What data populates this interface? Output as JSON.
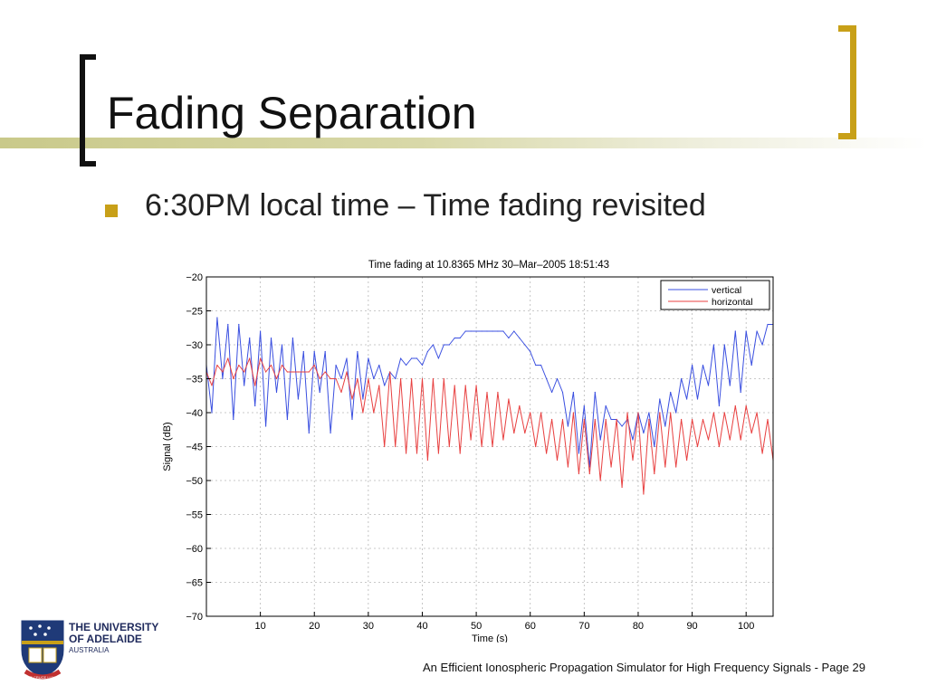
{
  "slide": {
    "title": "Fading Separation",
    "bullet": "6:30PM local time – Time fading revisited",
    "footer": "An Efficient Ionospheric Propagation Simulator for High Frequency Signals - Page 29",
    "logo": {
      "line1": "THE UNIVERSITY",
      "line2": "OF ADELAIDE",
      "line3": "AUSTRALIA",
      "motto": "SUB CRUCE LUMEN"
    }
  },
  "colors": {
    "accent_gold": "#c8a018",
    "accent_line": "#c9c98a",
    "vertical_series": "#3a4fe0",
    "horizontal_series": "#e84040"
  },
  "chart_data": {
    "type": "line",
    "title": "Time fading at 10.8365 MHz 30–Mar–2005 18:51:43",
    "xlabel": "Time (s)",
    "ylabel": "Signal (dB)",
    "xlim": [
      0,
      105
    ],
    "ylim": [
      -70,
      -20
    ],
    "xticks": [
      10,
      20,
      30,
      40,
      50,
      60,
      70,
      80,
      90,
      100
    ],
    "yticks": [
      -20,
      -25,
      -30,
      -35,
      -40,
      -45,
      -50,
      -55,
      -60,
      -65,
      -70
    ],
    "grid": true,
    "legend_position": "top-right",
    "series": [
      {
        "name": "vertical",
        "color": "#3a4fe0",
        "x": [
          0,
          1,
          2,
          3,
          4,
          5,
          6,
          7,
          8,
          9,
          10,
          11,
          12,
          13,
          14,
          15,
          16,
          17,
          18,
          19,
          20,
          21,
          22,
          23,
          24,
          25,
          26,
          27,
          28,
          29,
          30,
          31,
          32,
          33,
          34,
          35,
          36,
          37,
          38,
          39,
          40,
          41,
          42,
          43,
          44,
          45,
          46,
          47,
          48,
          49,
          50,
          51,
          52,
          53,
          54,
          55,
          56,
          57,
          58,
          59,
          60,
          61,
          62,
          63,
          64,
          65,
          66,
          67,
          68,
          69,
          70,
          71,
          72,
          73,
          74,
          75,
          76,
          77,
          78,
          79,
          80,
          81,
          82,
          83,
          84,
          85,
          86,
          87,
          88,
          89,
          90,
          91,
          92,
          93,
          94,
          95,
          96,
          97,
          98,
          99,
          100,
          101,
          102,
          103,
          104,
          105
        ],
        "values": [
          -33,
          -40,
          -26,
          -35,
          -27,
          -41,
          -27,
          -36,
          -29,
          -39,
          -28,
          -42,
          -29,
          -37,
          -30,
          -41,
          -29,
          -38,
          -31,
          -43,
          -31,
          -37,
          -31,
          -43,
          -33,
          -35,
          -32,
          -41,
          -31,
          -38,
          -32,
          -35,
          -33,
          -36,
          -34,
          -35,
          -32,
          -33,
          -32,
          -32,
          -33,
          -31,
          -30,
          -32,
          -30,
          -30,
          -29,
          -29,
          -28,
          -28,
          -28,
          -28,
          -28,
          -28,
          -28,
          -28,
          -29,
          -28,
          -29,
          -30,
          -31,
          -33,
          -33,
          -35,
          -37,
          -35,
          -37,
          -42,
          -37,
          -46,
          -39,
          -48,
          -37,
          -44,
          -39,
          -41,
          -41,
          -42,
          -41,
          -44,
          -40,
          -43,
          -40,
          -45,
          -38,
          -42,
          -37,
          -40,
          -35,
          -38,
          -33,
          -38,
          -33,
          -36,
          -30,
          -39,
          -30,
          -36,
          -28,
          -37,
          -28,
          -33,
          -28,
          -30,
          -27,
          -27
        ]
      },
      {
        "name": "horizontal",
        "color": "#e84040",
        "x": [
          0,
          1,
          2,
          3,
          4,
          5,
          6,
          7,
          8,
          9,
          10,
          11,
          12,
          13,
          14,
          15,
          16,
          17,
          18,
          19,
          20,
          21,
          22,
          23,
          24,
          25,
          26,
          27,
          28,
          29,
          30,
          31,
          32,
          33,
          34,
          35,
          36,
          37,
          38,
          39,
          40,
          41,
          42,
          43,
          44,
          45,
          46,
          47,
          48,
          49,
          50,
          51,
          52,
          53,
          54,
          55,
          56,
          57,
          58,
          59,
          60,
          61,
          62,
          63,
          64,
          65,
          66,
          67,
          68,
          69,
          70,
          71,
          72,
          73,
          74,
          75,
          76,
          77,
          78,
          79,
          80,
          81,
          82,
          83,
          84,
          85,
          86,
          87,
          88,
          89,
          90,
          91,
          92,
          93,
          94,
          95,
          96,
          97,
          98,
          99,
          100,
          101,
          102,
          103,
          104,
          105
        ],
        "values": [
          -34,
          -36,
          -33,
          -34,
          -32,
          -35,
          -33,
          -34,
          -32,
          -36,
          -32,
          -34,
          -33,
          -35,
          -33,
          -34,
          -34,
          -34,
          -34,
          -34,
          -33,
          -35,
          -34,
          -35,
          -35,
          -37,
          -34,
          -38,
          -35,
          -40,
          -35,
          -40,
          -36,
          -45,
          -34,
          -45,
          -35,
          -46,
          -35,
          -46,
          -35,
          -47,
          -35,
          -46,
          -35,
          -45,
          -36,
          -46,
          -36,
          -44,
          -36,
          -45,
          -37,
          -45,
          -37,
          -44,
          -38,
          -43,
          -39,
          -43,
          -40,
          -45,
          -40,
          -46,
          -41,
          -47,
          -41,
          -48,
          -40,
          -49,
          -41,
          -49,
          -41,
          -50,
          -41,
          -48,
          -41,
          -51,
          -40,
          -47,
          -40,
          -52,
          -41,
          -49,
          -40,
          -48,
          -40,
          -48,
          -41,
          -47,
          -41,
          -45,
          -41,
          -44,
          -40,
          -45,
          -40,
          -44,
          -39,
          -44,
          -39,
          -43,
          -40,
          -46,
          -41,
          -47
        ]
      }
    ]
  }
}
